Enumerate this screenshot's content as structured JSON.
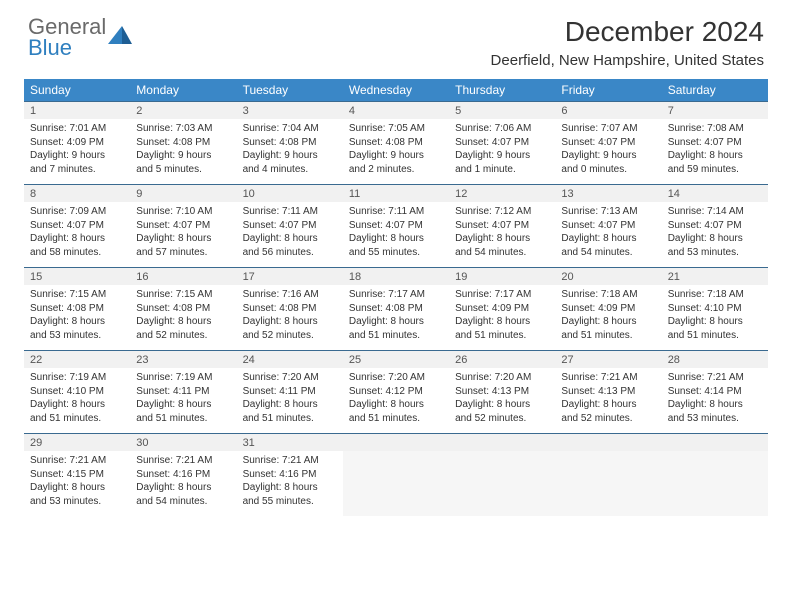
{
  "logo": {
    "general": "General",
    "blue": "Blue"
  },
  "title": "December 2024",
  "location": "Deerfield, New Hampshire, United States",
  "colors": {
    "header_bg": "#3a87c7",
    "header_text": "#ffffff",
    "daynum_bg": "#f1f1f1",
    "border": "#3a6a90",
    "logo_gray": "#6a6a6a",
    "logo_blue": "#2f7fbf"
  },
  "weekdays": [
    "Sunday",
    "Monday",
    "Tuesday",
    "Wednesday",
    "Thursday",
    "Friday",
    "Saturday"
  ],
  "weeks": [
    [
      {
        "n": "1",
        "sr": "Sunrise: 7:01 AM",
        "ss": "Sunset: 4:09 PM",
        "d1": "Daylight: 9 hours",
        "d2": "and 7 minutes."
      },
      {
        "n": "2",
        "sr": "Sunrise: 7:03 AM",
        "ss": "Sunset: 4:08 PM",
        "d1": "Daylight: 9 hours",
        "d2": "and 5 minutes."
      },
      {
        "n": "3",
        "sr": "Sunrise: 7:04 AM",
        "ss": "Sunset: 4:08 PM",
        "d1": "Daylight: 9 hours",
        "d2": "and 4 minutes."
      },
      {
        "n": "4",
        "sr": "Sunrise: 7:05 AM",
        "ss": "Sunset: 4:08 PM",
        "d1": "Daylight: 9 hours",
        "d2": "and 2 minutes."
      },
      {
        "n": "5",
        "sr": "Sunrise: 7:06 AM",
        "ss": "Sunset: 4:07 PM",
        "d1": "Daylight: 9 hours",
        "d2": "and 1 minute."
      },
      {
        "n": "6",
        "sr": "Sunrise: 7:07 AM",
        "ss": "Sunset: 4:07 PM",
        "d1": "Daylight: 9 hours",
        "d2": "and 0 minutes."
      },
      {
        "n": "7",
        "sr": "Sunrise: 7:08 AM",
        "ss": "Sunset: 4:07 PM",
        "d1": "Daylight: 8 hours",
        "d2": "and 59 minutes."
      }
    ],
    [
      {
        "n": "8",
        "sr": "Sunrise: 7:09 AM",
        "ss": "Sunset: 4:07 PM",
        "d1": "Daylight: 8 hours",
        "d2": "and 58 minutes."
      },
      {
        "n": "9",
        "sr": "Sunrise: 7:10 AM",
        "ss": "Sunset: 4:07 PM",
        "d1": "Daylight: 8 hours",
        "d2": "and 57 minutes."
      },
      {
        "n": "10",
        "sr": "Sunrise: 7:11 AM",
        "ss": "Sunset: 4:07 PM",
        "d1": "Daylight: 8 hours",
        "d2": "and 56 minutes."
      },
      {
        "n": "11",
        "sr": "Sunrise: 7:11 AM",
        "ss": "Sunset: 4:07 PM",
        "d1": "Daylight: 8 hours",
        "d2": "and 55 minutes."
      },
      {
        "n": "12",
        "sr": "Sunrise: 7:12 AM",
        "ss": "Sunset: 4:07 PM",
        "d1": "Daylight: 8 hours",
        "d2": "and 54 minutes."
      },
      {
        "n": "13",
        "sr": "Sunrise: 7:13 AM",
        "ss": "Sunset: 4:07 PM",
        "d1": "Daylight: 8 hours",
        "d2": "and 54 minutes."
      },
      {
        "n": "14",
        "sr": "Sunrise: 7:14 AM",
        "ss": "Sunset: 4:07 PM",
        "d1": "Daylight: 8 hours",
        "d2": "and 53 minutes."
      }
    ],
    [
      {
        "n": "15",
        "sr": "Sunrise: 7:15 AM",
        "ss": "Sunset: 4:08 PM",
        "d1": "Daylight: 8 hours",
        "d2": "and 53 minutes."
      },
      {
        "n": "16",
        "sr": "Sunrise: 7:15 AM",
        "ss": "Sunset: 4:08 PM",
        "d1": "Daylight: 8 hours",
        "d2": "and 52 minutes."
      },
      {
        "n": "17",
        "sr": "Sunrise: 7:16 AM",
        "ss": "Sunset: 4:08 PM",
        "d1": "Daylight: 8 hours",
        "d2": "and 52 minutes."
      },
      {
        "n": "18",
        "sr": "Sunrise: 7:17 AM",
        "ss": "Sunset: 4:08 PM",
        "d1": "Daylight: 8 hours",
        "d2": "and 51 minutes."
      },
      {
        "n": "19",
        "sr": "Sunrise: 7:17 AM",
        "ss": "Sunset: 4:09 PM",
        "d1": "Daylight: 8 hours",
        "d2": "and 51 minutes."
      },
      {
        "n": "20",
        "sr": "Sunrise: 7:18 AM",
        "ss": "Sunset: 4:09 PM",
        "d1": "Daylight: 8 hours",
        "d2": "and 51 minutes."
      },
      {
        "n": "21",
        "sr": "Sunrise: 7:18 AM",
        "ss": "Sunset: 4:10 PM",
        "d1": "Daylight: 8 hours",
        "d2": "and 51 minutes."
      }
    ],
    [
      {
        "n": "22",
        "sr": "Sunrise: 7:19 AM",
        "ss": "Sunset: 4:10 PM",
        "d1": "Daylight: 8 hours",
        "d2": "and 51 minutes."
      },
      {
        "n": "23",
        "sr": "Sunrise: 7:19 AM",
        "ss": "Sunset: 4:11 PM",
        "d1": "Daylight: 8 hours",
        "d2": "and 51 minutes."
      },
      {
        "n": "24",
        "sr": "Sunrise: 7:20 AM",
        "ss": "Sunset: 4:11 PM",
        "d1": "Daylight: 8 hours",
        "d2": "and 51 minutes."
      },
      {
        "n": "25",
        "sr": "Sunrise: 7:20 AM",
        "ss": "Sunset: 4:12 PM",
        "d1": "Daylight: 8 hours",
        "d2": "and 51 minutes."
      },
      {
        "n": "26",
        "sr": "Sunrise: 7:20 AM",
        "ss": "Sunset: 4:13 PM",
        "d1": "Daylight: 8 hours",
        "d2": "and 52 minutes."
      },
      {
        "n": "27",
        "sr": "Sunrise: 7:21 AM",
        "ss": "Sunset: 4:13 PM",
        "d1": "Daylight: 8 hours",
        "d2": "and 52 minutes."
      },
      {
        "n": "28",
        "sr": "Sunrise: 7:21 AM",
        "ss": "Sunset: 4:14 PM",
        "d1": "Daylight: 8 hours",
        "d2": "and 53 minutes."
      }
    ],
    [
      {
        "n": "29",
        "sr": "Sunrise: 7:21 AM",
        "ss": "Sunset: 4:15 PM",
        "d1": "Daylight: 8 hours",
        "d2": "and 53 minutes."
      },
      {
        "n": "30",
        "sr": "Sunrise: 7:21 AM",
        "ss": "Sunset: 4:16 PM",
        "d1": "Daylight: 8 hours",
        "d2": "and 54 minutes."
      },
      {
        "n": "31",
        "sr": "Sunrise: 7:21 AM",
        "ss": "Sunset: 4:16 PM",
        "d1": "Daylight: 8 hours",
        "d2": "and 55 minutes."
      },
      null,
      null,
      null,
      null
    ]
  ]
}
